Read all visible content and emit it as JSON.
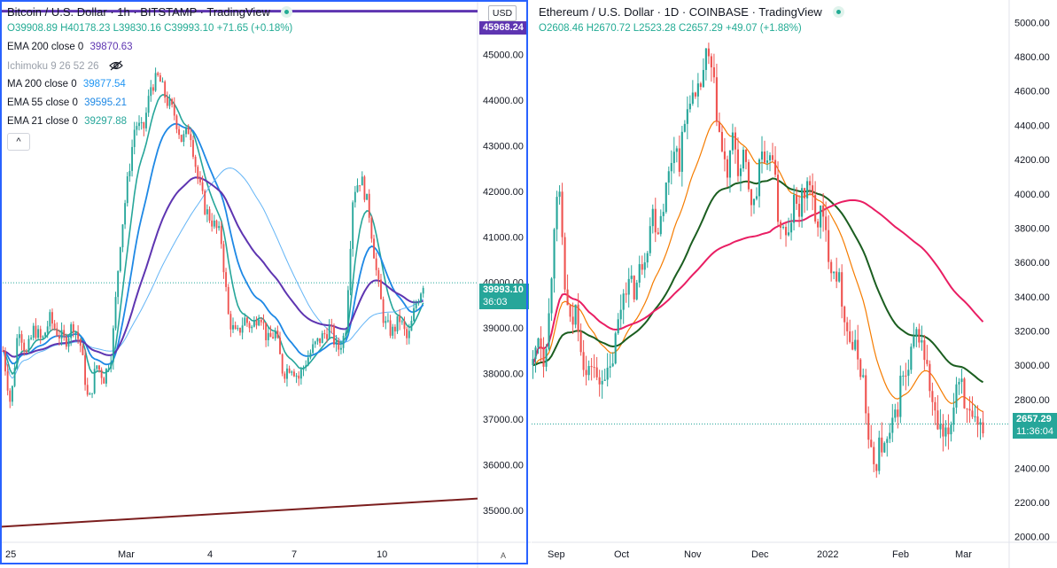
{
  "left": {
    "title": "Bitcoin / U.S. Dollar · 1h · BITSTAMP · TradingView",
    "ohlc": "O39908.89 H40178.23 L39830.16 C39993.10 +71.65 (+0.18%)",
    "currency": "USD",
    "indicators": [
      {
        "name": "EMA 200 close 0",
        "value": "39870.63",
        "color": "#5e35b1"
      },
      {
        "name": "Ichimoku 9 26 52 26",
        "value": "",
        "color": "#9aa0aa",
        "dim": true
      },
      {
        "name": "MA 200 close 0",
        "value": "39877.54",
        "color": "#2196f3"
      },
      {
        "name": "EMA 55 close 0",
        "value": "39595.21",
        "color": "#1e88e5"
      },
      {
        "name": "EMA 21 close 0",
        "value": "39297.88",
        "color": "#26a69a"
      }
    ],
    "collapse_label": "^",
    "price_label": "39993.10",
    "countdown": "36:03",
    "top_line_label": "45968.24",
    "auto_label": "A",
    "y_ticks": [
      "45000.00",
      "44000.00",
      "43000.00",
      "42000.00",
      "41000.00",
      "40000.00",
      "39000.00",
      "38000.00",
      "37000.00",
      "36000.00",
      "35000.00"
    ],
    "x_ticks": [
      "25",
      "Mar",
      "4",
      "7",
      "10"
    ]
  },
  "right": {
    "title": "Ethereum / U.S. Dollar · 1D · COINBASE · TradingView",
    "ohlc": "O2608.46 H2670.72 L2523.28 C2657.29 +49.07 (+1.88%)",
    "price_label": "2657.29",
    "countdown": "11:36:04",
    "y_ticks": [
      "5000.00",
      "4800.00",
      "4600.00",
      "4400.00",
      "4200.00",
      "4000.00",
      "3800.00",
      "3600.00",
      "3400.00",
      "3200.00",
      "3000.00",
      "2800.00",
      "2600.00",
      "2400.00",
      "2200.00",
      "2000.00"
    ],
    "x_ticks": [
      "Sep",
      "Oct",
      "Nov",
      "Dec",
      "2022",
      "Feb",
      "Mar"
    ]
  },
  "colors": {
    "up": "#26a69a",
    "down": "#ef5350",
    "axis_text": "#131722",
    "frame": "#2962ff"
  },
  "chart_data": [
    {
      "type": "candlestick",
      "title": "Bitcoin / U.S. Dollar · 1h · BITSTAMP",
      "ylim": [
        34300,
        46000
      ],
      "last_close": 39993.1,
      "series": [
        {
          "name": "EMA 200 close 0",
          "last": 39870.63
        },
        {
          "name": "MA 200 close 0",
          "last": 39877.54
        },
        {
          "name": "EMA 55 close 0",
          "last": 39595.21
        },
        {
          "name": "EMA 21 close 0",
          "last": 39297.88
        }
      ],
      "close_path": [
        38500,
        37300,
        39100,
        38400,
        39000,
        38700,
        39200,
        38900,
        38700,
        39100,
        38600,
        37300,
        38200,
        37900,
        38500,
        40800,
        42200,
        43500,
        43300,
        44300,
        44500,
        44000,
        43700,
        43100,
        43400,
        42300,
        41600,
        41300,
        41000,
        39200,
        38800,
        39200,
        39000,
        39400,
        38700,
        38900,
        38000,
        38200,
        37900,
        38300,
        38600,
        38800,
        39000,
        38500,
        38900,
        42000,
        42300,
        41600,
        40200,
        39100,
        38900,
        39200,
        38700,
        39500,
        39993
      ]
    },
    {
      "type": "candlestick",
      "title": "Ethereum / U.S. Dollar · 1D · COINBASE",
      "ylim": [
        1900,
        5100
      ],
      "last_close": 2657.29,
      "close_path": [
        3000,
        3200,
        3050,
        3300,
        3900,
        3950,
        3400,
        3200,
        3350,
        3100,
        2900,
        3050,
        2850,
        3000,
        2900,
        3100,
        3300,
        3500,
        3450,
        3450,
        3600,
        3700,
        3900,
        3800,
        3950,
        4100,
        4300,
        4200,
        4400,
        4600,
        4500,
        4650,
        4800,
        4700,
        4450,
        4200,
        4100,
        4350,
        4100,
        4200,
        4000,
        3900,
        4300,
        4050,
        4350,
        3900,
        3800,
        3700,
        3950,
        3900,
        4000,
        4100,
        3800,
        3900,
        3750,
        3600,
        3550,
        3400,
        3200,
        3100,
        3050,
        2900,
        2500,
        2400,
        2550,
        2500,
        2600,
        2700,
        2950,
        2900,
        3100,
        3200,
        3100,
        2900,
        2700,
        2600,
        2550,
        2650,
        2900,
        2950,
        2700,
        2650,
        2600,
        2657
      ]
    }
  ]
}
